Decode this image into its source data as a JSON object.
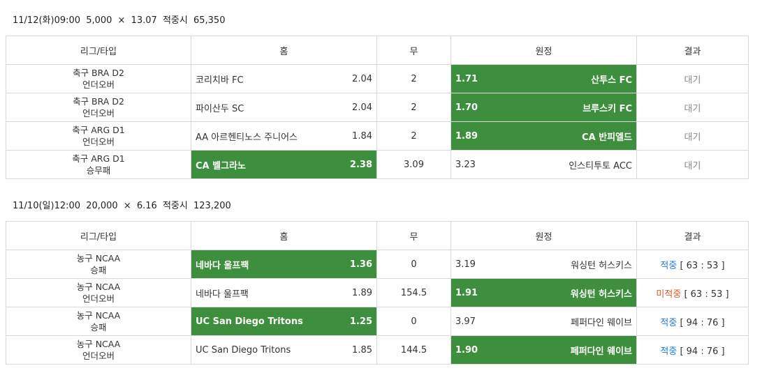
{
  "bets": [
    {
      "header": {
        "datetime": "11/12(화)09:00",
        "stake": "5,000",
        "times": "×",
        "odds": "13.07",
        "payout_label": "적중시",
        "payout": "65,350"
      },
      "columns": {
        "league": "리그/타입",
        "home": "홈",
        "draw": "무",
        "away": "원정",
        "result": "결과"
      },
      "rows": [
        {
          "league": "축구 BRA D2",
          "type": "언더오버",
          "home": "코리치바 FC",
          "home_odds": "2.04",
          "draw": "2",
          "away_odds": "1.71",
          "away": "산투스 FC",
          "selected": "away",
          "result_text": "대기",
          "result_status": "wait",
          "score": ""
        },
        {
          "league": "축구 BRA D2",
          "type": "언더오버",
          "home": "파이산두 SC",
          "home_odds": "2.04",
          "draw": "2",
          "away_odds": "1.70",
          "away": "브루스키 FC",
          "selected": "away",
          "result_text": "대기",
          "result_status": "wait",
          "score": ""
        },
        {
          "league": "축구 ARG D1",
          "type": "언더오버",
          "home": "AA 아르헨티노스 주니어스",
          "home_odds": "1.84",
          "draw": "2",
          "away_odds": "1.89",
          "away": "CA 반피엘드",
          "selected": "away",
          "result_text": "대기",
          "result_status": "wait",
          "score": ""
        },
        {
          "league": "축구 ARG D1",
          "type": "승무패",
          "home": "CA 벨그라노",
          "home_odds": "2.38",
          "draw": "3.09",
          "away_odds": "3.23",
          "away": "인스티투토 ACC",
          "selected": "home",
          "result_text": "대기",
          "result_status": "wait",
          "score": ""
        }
      ]
    },
    {
      "header": {
        "datetime": "11/10(일)12:00",
        "stake": "20,000",
        "times": "×",
        "odds": "6.16",
        "payout_label": "적중시",
        "payout": "123,200"
      },
      "columns": {
        "league": "리그/타입",
        "home": "홈",
        "draw": "무",
        "away": "원정",
        "result": "결과"
      },
      "rows": [
        {
          "league": "농구 NCAA",
          "type": "승패",
          "home": "네바다 울프팩",
          "home_odds": "1.36",
          "draw": "0",
          "away_odds": "3.19",
          "away": "워싱턴 허스키스",
          "selected": "home",
          "result_text": "적중",
          "result_status": "hit",
          "score": "[ 63 : 53 ]"
        },
        {
          "league": "농구 NCAA",
          "type": "언더오버",
          "home": "네바다 울프팩",
          "home_odds": "1.89",
          "draw": "154.5",
          "away_odds": "1.91",
          "away": "워싱턴 허스키스",
          "selected": "away",
          "result_text": "미적중",
          "result_status": "miss",
          "score": "[ 63 : 53 ]"
        },
        {
          "league": "농구 NCAA",
          "type": "승패",
          "home": "UC San Diego Tritons",
          "home_odds": "1.25",
          "draw": "0",
          "away_odds": "3.97",
          "away": "페퍼다인 웨이브",
          "selected": "home",
          "result_text": "적중",
          "result_status": "hit",
          "score": "[ 94 : 76 ]"
        },
        {
          "league": "농구 NCAA",
          "type": "언더오버",
          "home": "UC San Diego Tritons",
          "home_odds": "1.85",
          "draw": "144.5",
          "away_odds": "1.90",
          "away": "페퍼다인 웨이브",
          "selected": "away",
          "result_text": "적중",
          "result_status": "hit",
          "score": "[ 94 : 76 ]"
        }
      ]
    }
  ]
}
